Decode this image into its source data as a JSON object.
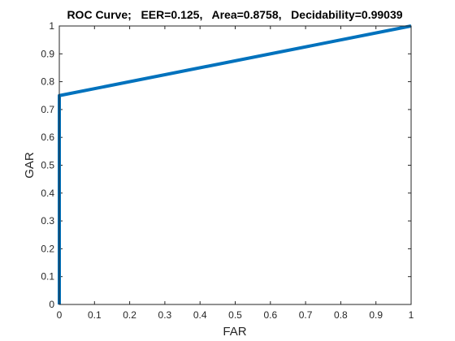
{
  "chart_data": {
    "type": "line",
    "title": "ROC Curve;   EER=0.125,   Area=0.8758,   Decidability=0.99039",
    "xlabel": "FAR",
    "ylabel": "GAR",
    "xlim": [
      0,
      1
    ],
    "ylim": [
      0,
      1
    ],
    "xticks": [
      0,
      0.1,
      0.2,
      0.3,
      0.4,
      0.5,
      0.6,
      0.7,
      0.8,
      0.9,
      1
    ],
    "yticks": [
      0,
      0.1,
      0.2,
      0.3,
      0.4,
      0.5,
      0.6,
      0.7,
      0.8,
      0.9,
      1
    ],
    "xtick_labels": [
      "0",
      "0.1",
      "0.2",
      "0.3",
      "0.4",
      "0.5",
      "0.6",
      "0.7",
      "0.8",
      "0.9",
      "1"
    ],
    "ytick_labels": [
      "0",
      "0.1",
      "0.2",
      "0.3",
      "0.4",
      "0.5",
      "0.6",
      "0.7",
      "0.8",
      "0.9",
      "1"
    ],
    "grid": false,
    "legend": "none",
    "series": [
      {
        "color": "#0072bd",
        "x": [
          0,
          0,
          1
        ],
        "y": [
          0,
          0.75,
          1
        ]
      }
    ]
  }
}
